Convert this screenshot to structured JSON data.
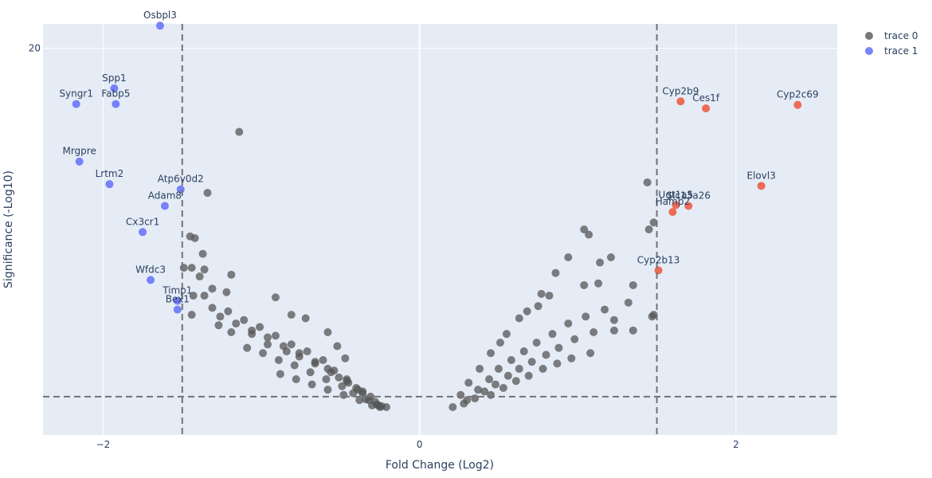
{
  "chart_data": {
    "type": "scatter",
    "title": "",
    "xlabel": "Fold Change (Log2)",
    "ylabel": "Significance (-Log10)",
    "xlim": [
      -2.38,
      2.64
    ],
    "ylim": [
      -2.2,
      21.4
    ],
    "x_ticks": [
      -2,
      0,
      2
    ],
    "y_ticks": [
      20
    ],
    "grid": true,
    "legend_position": "top-right",
    "thresholds": {
      "x": [
        -1.5,
        1.5
      ],
      "y": 0
    },
    "colors": {
      "plot_bg": "#e5ecf6",
      "grid": "#ffffff",
      "trace0": "#555555",
      "trace1": "#636efa",
      "up": "#ef553b",
      "threshold_line": "#737373",
      "text": "#2a3f5f"
    },
    "series": [
      {
        "name": "trace 0",
        "color": "#555555",
        "points": [
          [
            -1.14,
            15.2
          ],
          [
            -1.34,
            11.7
          ],
          [
            -1.45,
            9.2
          ],
          [
            -1.42,
            9.1
          ],
          [
            -1.37,
            8.2
          ],
          [
            -1.36,
            7.3
          ],
          [
            -1.49,
            7.4
          ],
          [
            -1.44,
            7.4
          ],
          [
            -1.39,
            6.9
          ],
          [
            -1.19,
            7.0
          ],
          [
            -1.31,
            6.2
          ],
          [
            -1.43,
            5.8
          ],
          [
            -1.36,
            5.8
          ],
          [
            -1.22,
            6.0
          ],
          [
            -0.91,
            5.7
          ],
          [
            -0.81,
            4.7
          ],
          [
            -0.72,
            4.5
          ],
          [
            -0.58,
            3.7
          ],
          [
            -0.52,
            2.9
          ],
          [
            -0.47,
            2.2
          ],
          [
            -1.44,
            4.7
          ],
          [
            -1.27,
            4.1
          ],
          [
            -1.19,
            3.7
          ],
          [
            -1.06,
            3.6
          ],
          [
            -0.96,
            3.0
          ],
          [
            -0.84,
            2.6
          ],
          [
            -0.76,
            2.3
          ],
          [
            -0.66,
            1.9
          ],
          [
            -0.58,
            1.6
          ],
          [
            -0.51,
            1.1
          ],
          [
            -0.45,
            0.8
          ],
          [
            -0.4,
            0.5
          ],
          [
            -0.36,
            0.2
          ],
          [
            -0.32,
            -0.2
          ],
          [
            -0.26,
            -0.5
          ],
          [
            -0.21,
            -0.6
          ],
          [
            -1.31,
            5.1
          ],
          [
            -1.21,
            4.9
          ],
          [
            -1.11,
            4.4
          ],
          [
            -1.01,
            4.0
          ],
          [
            -0.91,
            3.5
          ],
          [
            -0.81,
            3.0
          ],
          [
            -0.71,
            2.6
          ],
          [
            -0.61,
            2.1
          ],
          [
            -0.54,
            1.5
          ],
          [
            -0.46,
            1.0
          ],
          [
            -0.39,
            0.4
          ],
          [
            -0.31,
            0.0
          ],
          [
            1.44,
            12.3
          ],
          [
            1.48,
            10.0
          ],
          [
            1.45,
            9.6
          ],
          [
            1.04,
            9.6
          ],
          [
            1.07,
            9.3
          ],
          [
            1.21,
            8.0
          ],
          [
            1.14,
            7.7
          ],
          [
            0.94,
            8.0
          ],
          [
            0.86,
            7.1
          ],
          [
            1.04,
            6.4
          ],
          [
            1.13,
            6.5
          ],
          [
            1.35,
            6.4
          ],
          [
            1.48,
            4.7
          ],
          [
            1.47,
            4.6
          ],
          [
            1.35,
            3.8
          ],
          [
            1.23,
            4.4
          ],
          [
            0.77,
            5.9
          ],
          [
            0.82,
            5.8
          ],
          [
            0.75,
            5.2
          ],
          [
            0.68,
            4.9
          ],
          [
            0.63,
            4.5
          ],
          [
            0.55,
            3.6
          ],
          [
            0.51,
            3.1
          ],
          [
            0.45,
            2.5
          ],
          [
            0.38,
            1.6
          ],
          [
            0.31,
            0.8
          ],
          [
            0.26,
            0.1
          ],
          [
            0.21,
            -0.6
          ],
          [
            1.23,
            3.8
          ],
          [
            1.1,
            3.7
          ],
          [
            0.98,
            3.3
          ],
          [
            0.88,
            2.8
          ],
          [
            0.8,
            2.4
          ],
          [
            0.71,
            2.0
          ],
          [
            0.63,
            1.6
          ],
          [
            0.56,
            1.2
          ],
          [
            0.48,
            0.7
          ],
          [
            0.41,
            0.3
          ],
          [
            0.35,
            -0.1
          ],
          [
            0.28,
            -0.4
          ],
          [
            1.32,
            5.4
          ],
          [
            1.17,
            5.0
          ],
          [
            1.05,
            4.6
          ],
          [
            0.94,
            4.2
          ],
          [
            0.84,
            3.6
          ],
          [
            0.74,
            3.1
          ],
          [
            0.66,
            2.6
          ],
          [
            0.58,
            2.1
          ],
          [
            0.5,
            1.6
          ],
          [
            0.44,
            1.0
          ],
          [
            0.37,
            0.4
          ],
          [
            0.3,
            -0.2
          ],
          [
            1.08,
            2.5
          ],
          [
            0.96,
            2.2
          ],
          [
            0.87,
            1.9
          ],
          [
            0.78,
            1.6
          ],
          [
            0.69,
            1.2
          ],
          [
            0.61,
            0.9
          ],
          [
            0.53,
            0.5
          ],
          [
            0.45,
            0.1
          ],
          [
            -1.26,
            4.6
          ],
          [
            -1.16,
            4.2
          ],
          [
            -1.06,
            3.8
          ],
          [
            -0.96,
            3.4
          ],
          [
            -0.86,
            2.9
          ],
          [
            -0.76,
            2.5
          ],
          [
            -0.66,
            2.0
          ],
          [
            -0.56,
            1.4
          ],
          [
            -0.46,
            0.9
          ],
          [
            -0.36,
            0.3
          ],
          [
            -0.28,
            -0.3
          ],
          [
            -0.24,
            -0.55
          ],
          [
            -1.09,
            2.8
          ],
          [
            -0.99,
            2.5
          ],
          [
            -0.89,
            2.1
          ],
          [
            -0.79,
            1.8
          ],
          [
            -0.69,
            1.4
          ],
          [
            -0.59,
            1.0
          ],
          [
            -0.49,
            0.6
          ],
          [
            -0.42,
            0.2
          ],
          [
            -0.34,
            -0.15
          ],
          [
            -0.27,
            -0.45
          ],
          [
            -0.88,
            1.3
          ],
          [
            -0.78,
            1.0
          ],
          [
            -0.68,
            0.7
          ],
          [
            -0.58,
            0.4
          ],
          [
            -0.48,
            0.1
          ],
          [
            -0.38,
            -0.2
          ],
          [
            -0.3,
            -0.5
          ],
          [
            -0.25,
            -0.6
          ]
        ]
      },
      {
        "name": "trace 1",
        "color": "#636efa",
        "points": [
          {
            "label": "Osbpl3",
            "x": -1.64,
            "y": 21.3
          },
          {
            "label": "Spp1",
            "x": -1.93,
            "y": 17.7
          },
          {
            "label": "Syngr1",
            "x": -2.17,
            "y": 16.8
          },
          {
            "label": "Fabp5",
            "x": -1.92,
            "y": 16.8
          },
          {
            "label": "Mrgpre",
            "x": -2.15,
            "y": 13.5
          },
          {
            "label": "Lrtm2",
            "x": -1.96,
            "y": 12.2
          },
          {
            "label": "Atp6v0d2",
            "x": -1.51,
            "y": 11.9
          },
          {
            "label": "Adam8",
            "x": -1.61,
            "y": 10.95
          },
          {
            "label": "Cx3cr1",
            "x": -1.75,
            "y": 9.45
          },
          {
            "label": "Wfdc3",
            "x": -1.7,
            "y": 6.7
          },
          {
            "label": "Timp1",
            "x": -1.53,
            "y": 5.5
          },
          {
            "label": "Bex1",
            "x": -1.53,
            "y": 5.0
          }
        ]
      },
      {
        "name": "",
        "color": "#ef553b",
        "points": [
          {
            "label": "Cyp2b9",
            "x": 1.65,
            "y": 16.95
          },
          {
            "label": "Ces1f",
            "x": 1.81,
            "y": 16.55
          },
          {
            "label": "Cyp2c69",
            "x": 2.39,
            "y": 16.75
          },
          {
            "label": "Elovl3",
            "x": 2.16,
            "y": 12.1
          },
          {
            "label": "Ugt1a5",
            "x": 1.62,
            "y": 11.0
          },
          {
            "label": "Slc13a26",
            "x": 1.7,
            "y": 10.95
          },
          {
            "label": "Hamp2",
            "x": 1.6,
            "y": 10.6
          },
          {
            "label": "Cyp2b13",
            "x": 1.51,
            "y": 7.25
          }
        ]
      }
    ],
    "label_offsets": {
      "Ugt1a5": "above",
      "Slc13a26": "above",
      "Hamp2": "above"
    }
  },
  "legend": [
    {
      "label": "trace 0",
      "color": "#555555"
    },
    {
      "label": "trace 1",
      "color": "#636efa"
    }
  ]
}
